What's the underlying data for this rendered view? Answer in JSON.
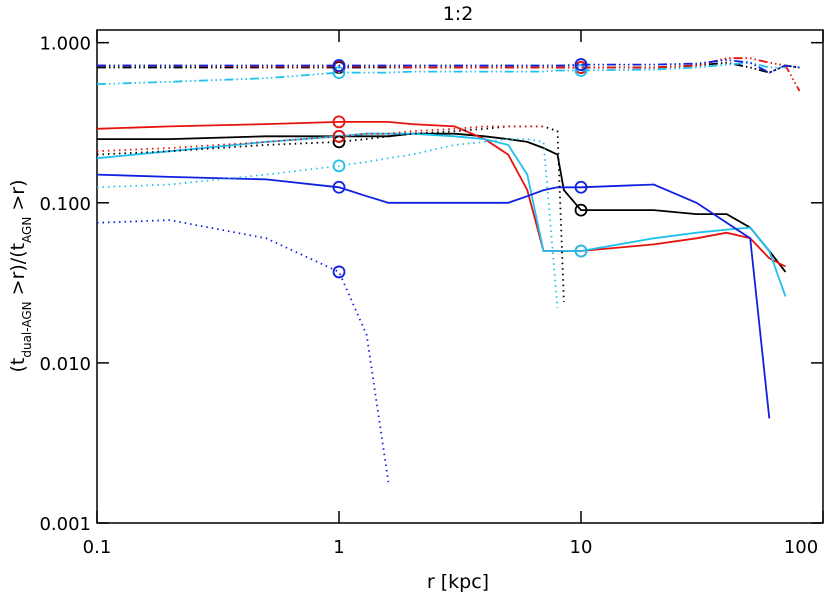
{
  "chart_data": {
    "type": "line",
    "title": "1:2",
    "xlabel": "r [kpc]",
    "ylabel": [
      "(t",
      "dual-AGN",
      " >r)/(t",
      "AGN",
      " >r)"
    ],
    "log_x": true,
    "log_y": true,
    "xlim": [
      0.1,
      100
    ],
    "xticks": [
      0.1,
      1,
      10,
      100
    ],
    "ylim": [
      0.001,
      1.2
    ],
    "yticks": [
      0.001,
      {
        "value": 0.01,
        "label": "0.010"
      },
      {
        "value": 0.1,
        "label": "0.100"
      },
      {
        "value": 1,
        "label": "1.000"
      }
    ],
    "x": [
      0.1,
      0.2,
      0.5,
      1,
      1.3,
      1.6,
      2,
      3,
      4,
      5,
      6,
      7,
      8,
      8.5,
      10,
      20,
      30,
      40,
      50,
      60,
      70,
      80
    ],
    "marker_x": [
      1,
      10
    ],
    "series": [
      {
        "color": "#000000",
        "dash": "solid",
        "values": [
          0.25,
          0.25,
          0.26,
          0.26,
          0.26,
          0.26,
          0.27,
          0.27,
          0.26,
          0.25,
          0.24,
          0.22,
          0.2,
          0.12,
          0.09,
          0.09,
          0.085,
          0.085,
          0.07,
          0.05,
          0.037,
          null
        ]
      },
      {
        "color": "#e8120c",
        "dash": "solid",
        "values": [
          0.29,
          0.3,
          0.31,
          0.32,
          0.32,
          0.32,
          0.31,
          0.3,
          0.25,
          0.2,
          0.12,
          0.05,
          0.05,
          0.05,
          0.05,
          0.055,
          0.06,
          0.065,
          0.06,
          0.045,
          0.04,
          null
        ]
      },
      {
        "color": "#1ec0f0",
        "dash": "solid",
        "values": [
          0.19,
          0.21,
          0.24,
          0.26,
          0.27,
          0.27,
          0.27,
          0.26,
          0.25,
          0.23,
          0.15,
          0.05,
          0.05,
          0.05,
          0.05,
          0.06,
          0.065,
          0.068,
          0.07,
          0.05,
          0.026,
          null
        ]
      },
      {
        "color": "#1020e0",
        "dash": "solid",
        "values": [
          0.15,
          0.145,
          0.14,
          0.125,
          0.11,
          0.1,
          0.1,
          0.1,
          0.1,
          0.1,
          0.11,
          0.12,
          0.125,
          0.125,
          0.125,
          0.13,
          0.1,
          0.075,
          0.06,
          0.0045,
          null,
          null
        ]
      },
      {
        "color": "#000000",
        "dash": "dotted",
        "values": [
          0.2,
          0.21,
          0.23,
          0.24,
          0.25,
          0.26,
          0.27,
          0.28,
          0.29,
          0.3,
          0.3,
          0.3,
          0.28,
          0.024,
          null,
          null,
          null,
          null,
          null,
          null,
          null,
          null
        ]
      },
      {
        "color": "#e8120c",
        "dash": "dotted",
        "values": [
          0.21,
          0.22,
          0.24,
          0.26,
          0.27,
          0.27,
          0.28,
          0.29,
          0.3,
          0.3,
          0.3,
          0.3,
          null,
          null,
          null,
          null,
          null,
          null,
          null,
          null,
          null,
          null
        ]
      },
      {
        "color": "#1ec0f0",
        "dash": "dotted",
        "values": [
          0.125,
          0.13,
          0.15,
          0.17,
          0.18,
          0.19,
          0.2,
          0.23,
          0.24,
          0.25,
          0.25,
          0.24,
          0.022,
          null,
          null,
          null,
          null,
          null,
          null,
          null,
          null,
          null
        ]
      },
      {
        "color": "#1020e0",
        "dash": "dotted",
        "values": [
          0.075,
          0.078,
          0.06,
          0.037,
          0.015,
          0.0018,
          null,
          null,
          null,
          null,
          null,
          null,
          null,
          null,
          null,
          null,
          null,
          null,
          null,
          null,
          null,
          null
        ]
      },
      {
        "color": "#000000",
        "dash": "dashdot",
        "values": [
          0.7,
          0.7,
          0.7,
          0.7,
          0.7,
          0.7,
          0.7,
          0.7,
          0.7,
          0.7,
          0.7,
          0.7,
          0.7,
          0.7,
          0.7,
          0.7,
          0.72,
          0.75,
          0.7,
          0.65,
          0.72,
          0.7
        ]
      },
      {
        "color": "#e8120c",
        "dash": "dashdot",
        "values": [
          0.72,
          0.72,
          0.71,
          0.71,
          0.71,
          0.71,
          0.7,
          0.7,
          0.7,
          0.7,
          0.7,
          0.7,
          0.7,
          0.7,
          0.7,
          0.7,
          0.72,
          0.8,
          0.8,
          0.75,
          0.72,
          0.5
        ]
      },
      {
        "color": "#1ec0f0",
        "dash": "dashdot",
        "values": [
          0.55,
          0.57,
          0.6,
          0.65,
          0.65,
          0.65,
          0.66,
          0.66,
          0.66,
          0.66,
          0.66,
          0.66,
          0.67,
          0.67,
          0.67,
          0.68,
          0.7,
          0.73,
          0.75,
          0.7,
          0.7,
          null
        ]
      },
      {
        "color": "#1020e0",
        "dash": "dashdot",
        "values": [
          0.72,
          0.72,
          0.72,
          0.72,
          0.72,
          0.72,
          0.72,
          0.72,
          0.72,
          0.72,
          0.72,
          0.72,
          0.72,
          0.72,
          0.73,
          0.73,
          0.74,
          0.78,
          0.75,
          0.65,
          0.72,
          0.7
        ]
      }
    ]
  }
}
